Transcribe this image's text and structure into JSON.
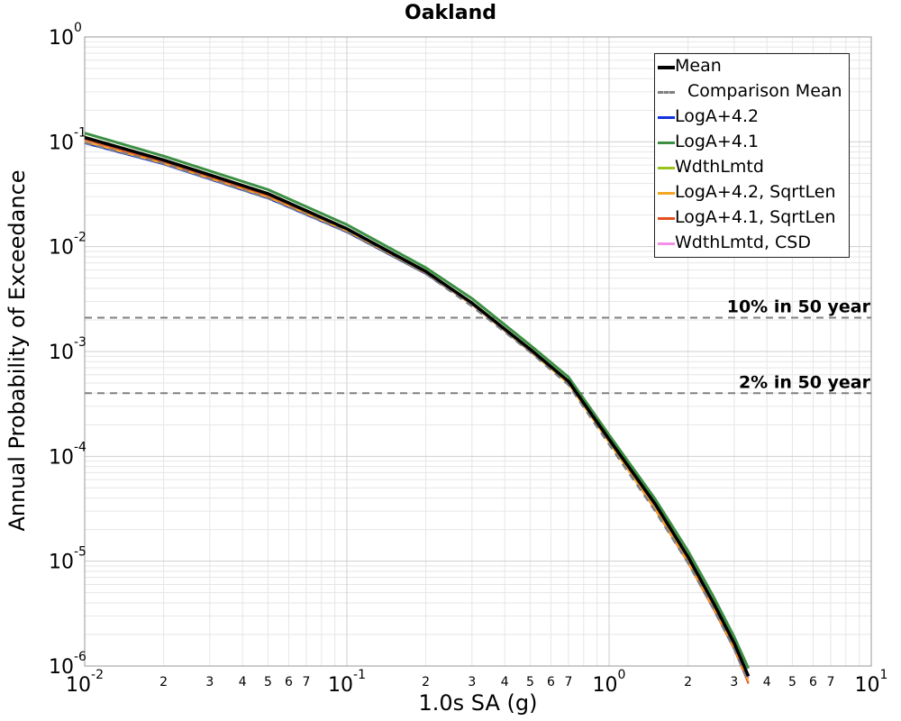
{
  "chart_data": {
    "type": "line",
    "title": "Oakland",
    "xlabel": "1.0s SA (g)",
    "ylabel": "Annual Probability of Exceedance",
    "xscale": "log",
    "yscale": "log",
    "xlim": [
      0.01,
      10
    ],
    "ylim": [
      1e-06,
      1
    ],
    "grid": true,
    "legend_position": "top-right",
    "x_major_ticks": [
      {
        "base": "10",
        "exp": "-2"
      },
      {
        "base": "10",
        "exp": "-1"
      },
      {
        "base": "10",
        "exp": "0"
      },
      {
        "base": "10",
        "exp": "1"
      }
    ],
    "x_minor_tick_labels": [
      "2",
      "3",
      "4",
      "5",
      "6",
      "7"
    ],
    "y_major_ticks": [
      {
        "base": "10",
        "exp": "0"
      },
      {
        "base": "10",
        "exp": "-1"
      },
      {
        "base": "10",
        "exp": "-2"
      },
      {
        "base": "10",
        "exp": "-3"
      },
      {
        "base": "10",
        "exp": "-4"
      },
      {
        "base": "10",
        "exp": "-5"
      },
      {
        "base": "10",
        "exp": "-6"
      }
    ],
    "series": [
      {
        "name": "Mean",
        "color": "#000000",
        "style": "solid",
        "width": 3.5,
        "x": [
          0.01,
          0.02,
          0.05,
          0.1,
          0.2,
          0.3,
          0.5,
          0.7,
          1.0,
          1.5,
          2.0,
          2.5,
          3.0,
          3.4
        ],
        "y": [
          0.11,
          0.067,
          0.032,
          0.0148,
          0.0058,
          0.0029,
          0.00105,
          0.00052,
          0.000145,
          3.5e-05,
          1.1e-05,
          4e-06,
          1.65e-06,
          8e-07
        ]
      },
      {
        "name": "Comparison Mean",
        "color": "#808080",
        "style": "dashed",
        "width": 2.5,
        "x": [
          0.01,
          0.02,
          0.05,
          0.1,
          0.2,
          0.3,
          0.5,
          0.7,
          1.0,
          1.5,
          2.0,
          2.5,
          3.0,
          3.4
        ],
        "y": [
          0.098,
          0.062,
          0.029,
          0.0138,
          0.0055,
          0.0027,
          0.00099,
          0.00048,
          0.00013,
          3e-05,
          9.6e-06,
          3.5e-06,
          1.45e-06,
          7e-07
        ]
      },
      {
        "name": "LogA+4.2",
        "color": "#1133dd",
        "style": "solid",
        "width": 2,
        "x": [
          0.01,
          0.02,
          0.05,
          0.1,
          0.2,
          0.3,
          0.5,
          0.7,
          1.0,
          1.5,
          2.0,
          2.5,
          3.0,
          3.4
        ],
        "y": [
          0.097,
          0.061,
          0.0288,
          0.0137,
          0.0055,
          0.0028,
          0.001,
          0.0005,
          0.00014,
          3.3e-05,
          1.05e-05,
          3.9e-06,
          1.6e-06,
          7.7e-07
        ]
      },
      {
        "name": "LogA+4.1",
        "color": "#3c8f43",
        "style": "solid",
        "width": 3,
        "x": [
          0.01,
          0.02,
          0.05,
          0.1,
          0.2,
          0.3,
          0.5,
          0.7,
          1.0,
          1.5,
          2.0,
          2.5,
          3.0,
          3.4
        ],
        "y": [
          0.121,
          0.073,
          0.035,
          0.0162,
          0.0063,
          0.0032,
          0.00115,
          0.00057,
          0.00016,
          3.9e-05,
          1.25e-05,
          4.6e-06,
          1.9e-06,
          9.5e-07
        ]
      },
      {
        "name": "WdthLmtd",
        "color": "#99c21a",
        "style": "solid",
        "width": 2,
        "x": [
          0.01,
          0.02,
          0.05,
          0.1,
          0.2,
          0.3,
          0.5,
          0.7,
          1.0,
          1.5,
          2.0,
          2.5,
          3.0,
          3.4
        ],
        "y": [
          0.112,
          0.068,
          0.0325,
          0.015,
          0.0059,
          0.00295,
          0.00107,
          0.00053,
          0.000147,
          3.55e-05,
          1.12e-05,
          4.1e-06,
          1.7e-06,
          8.2e-07
        ]
      },
      {
        "name": "LogA+4.2, SqrtLen",
        "color": "#f5a623",
        "style": "solid",
        "width": 2,
        "x": [
          0.01,
          0.02,
          0.05,
          0.1,
          0.2,
          0.3,
          0.5,
          0.7,
          1.0,
          1.5,
          2.0,
          2.5,
          3.0,
          3.4
        ],
        "y": [
          0.1,
          0.062,
          0.0295,
          0.014,
          0.0056,
          0.0028,
          0.00101,
          0.00049,
          0.000135,
          3.15e-05,
          9.9e-06,
          3.6e-06,
          1.5e-06,
          7.2e-07
        ]
      },
      {
        "name": "LogA+4.1, SqrtLen",
        "color": "#e5501f",
        "style": "solid",
        "width": 2,
        "x": [
          0.01,
          0.02,
          0.05,
          0.1,
          0.2,
          0.3,
          0.5,
          0.7,
          1.0,
          1.5,
          2.0,
          2.5,
          3.0,
          3.4
        ],
        "y": [
          0.105,
          0.064,
          0.0305,
          0.0143,
          0.0057,
          0.00285,
          0.00102,
          0.0005,
          0.000137,
          3.1e-05,
          9.7e-06,
          3.5e-06,
          1.45e-06,
          6.8e-07
        ]
      },
      {
        "name": "WdthLmtd, CSD",
        "color": "#f58ee5",
        "style": "solid",
        "width": 2,
        "x": [
          0.01,
          0.02,
          0.05,
          0.1,
          0.2,
          0.3,
          0.5,
          0.7,
          1.0,
          1.5,
          2.0,
          2.5,
          3.0,
          3.4
        ],
        "y": [
          0.108,
          0.066,
          0.0315,
          0.0146,
          0.0058,
          0.0029,
          0.00104,
          0.00051,
          0.000142,
          3.4e-05,
          1.07e-05,
          3.9e-06,
          1.6e-06,
          7.8e-07
        ]
      }
    ],
    "reference_lines": [
      {
        "label": "10% in 50 year",
        "y": 0.0021,
        "color": "#808080",
        "style": "dashed"
      },
      {
        "label": "2% in 50 year",
        "y": 0.0004,
        "color": "#808080",
        "style": "dashed"
      }
    ]
  }
}
